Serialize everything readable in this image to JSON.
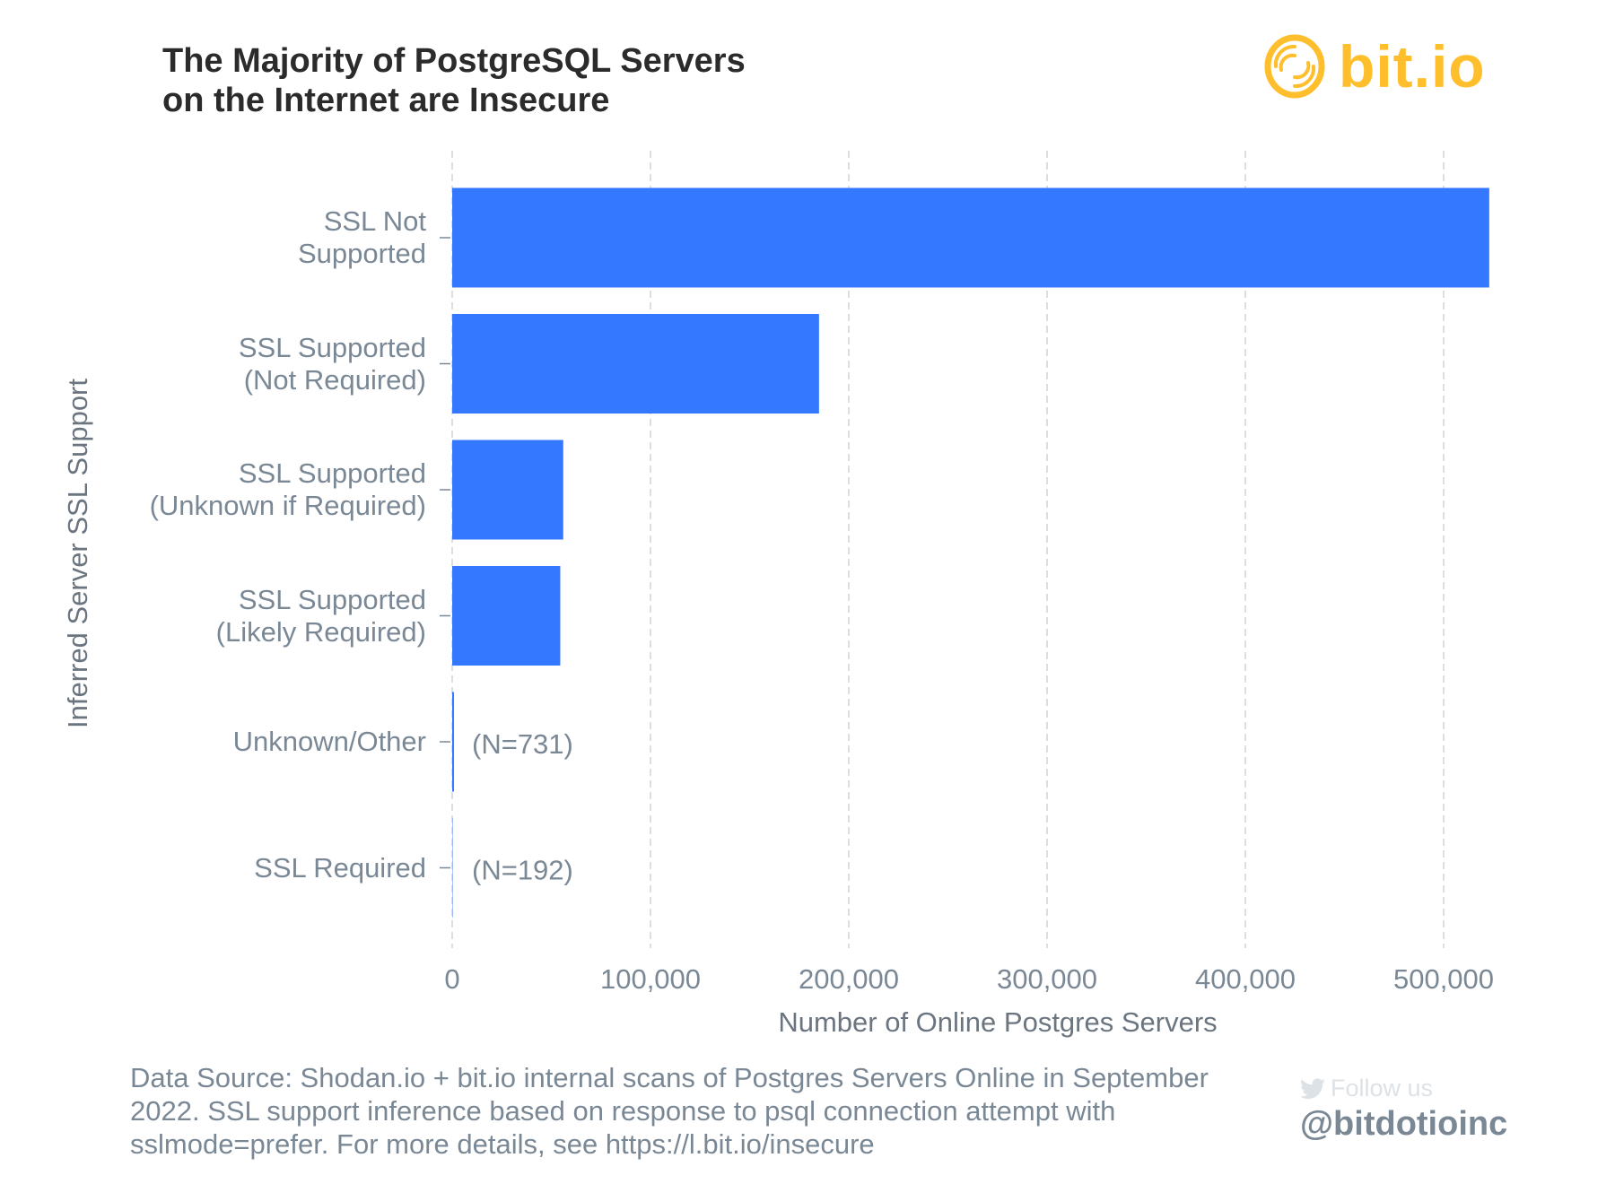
{
  "brand": {
    "logo_text": "bit.io",
    "logo_color": "#ffbe2b"
  },
  "chart_data": {
    "type": "bar",
    "orientation": "horizontal",
    "title": "The Majority of PostgreSQL Servers on the Internet are Insecure",
    "title_lines": [
      "The Majority of PostgreSQL Servers",
      "on the Internet are Insecure"
    ],
    "xlabel": "Number of Online Postgres Servers",
    "ylabel": "Inferred Server SSL Support",
    "categories": [
      [
        "SSL Not",
        "Supported"
      ],
      [
        "SSL Supported",
        "(Not Required)"
      ],
      [
        "SSL Supported",
        "(Unknown if Required)"
      ],
      [
        "SSL Supported",
        "(Likely Required)"
      ],
      [
        "Unknown/Other"
      ],
      [
        "SSL Required"
      ]
    ],
    "values": [
      523000,
      185000,
      56000,
      54500,
      731,
      192
    ],
    "annotations": [
      "",
      "",
      "",
      "",
      "(N=731)",
      "(N=192)"
    ],
    "xlim": [
      0,
      525000
    ],
    "xticks": [
      0,
      100000,
      200000,
      300000,
      400000,
      500000
    ],
    "xtick_labels": [
      "0",
      "100,000",
      "200,000",
      "300,000",
      "400,000",
      "500,000"
    ],
    "grid": "vertical dashed",
    "bar_color": "#3478ff"
  },
  "footer": {
    "source": "Data Source: Shodan.io + bit.io internal scans of Postgres Servers Online in September 2022. SSL support inference based on response to psql connection attempt with sslmode=prefer. For more details, see https://l.bit.io/insecure",
    "follow_label": "Follow us",
    "handle": "@bitdotioinc",
    "twitter_icon": "twitter-bird-icon"
  }
}
